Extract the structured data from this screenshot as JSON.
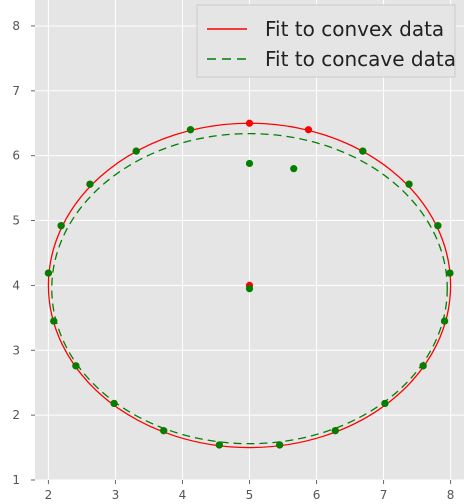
{
  "chart_data": {
    "type": "scatter",
    "xlim": [
      1.8,
      8.2
    ],
    "ylim": [
      1,
      8.4
    ],
    "xticks": [
      "2",
      "3",
      "4",
      "5",
      "6",
      "7",
      "8"
    ],
    "yticks": [
      "1",
      "2",
      "3",
      "4",
      "5",
      "6",
      "7",
      "8"
    ],
    "grid": true,
    "background": "#e5e5e5",
    "legend_location": "top-right",
    "legend": [
      {
        "label": "Fit to convex data",
        "color": "#ff0000",
        "style": "solid"
      },
      {
        "label": "Fit to concave data",
        "color": "#008000",
        "style": "dashed"
      }
    ],
    "fits": [
      {
        "name": "Fit to convex data",
        "color": "#ff0000",
        "style": "solid",
        "center": [
          5.0,
          4.0
        ],
        "radius_x": 3.0,
        "radius_y": 2.5
      },
      {
        "name": "Fit to concave data",
        "color": "#008000",
        "style": "dashed",
        "center": [
          5.0,
          3.95
        ],
        "radius_x": 2.95,
        "radius_y": 2.39
      }
    ],
    "points_convex": {
      "color": "#ff0000",
      "x": [
        5.0,
        5.0,
        5.88,
        6.69,
        7.38,
        7.81,
        7.99,
        7.91,
        7.59,
        7.02,
        6.28,
        5.45,
        4.55,
        3.72,
        2.98,
        2.41,
        2.08,
        2.0,
        2.19,
        2.62,
        3.31,
        4.12
      ],
      "y": [
        4.0,
        6.5,
        6.4,
        6.07,
        5.56,
        4.92,
        4.19,
        3.45,
        2.76,
        2.18,
        1.76,
        1.54,
        1.54,
        1.76,
        2.18,
        2.76,
        3.45,
        4.19,
        4.92,
        5.56,
        6.07,
        6.4
      ]
    },
    "points_concave": {
      "color": "#008000",
      "x": [
        5.0,
        5.0,
        5.66,
        6.69,
        7.38,
        7.81,
        7.99,
        7.91,
        7.59,
        7.02,
        6.28,
        5.45,
        4.55,
        3.72,
        2.98,
        2.41,
        2.08,
        2.0,
        2.19,
        2.62,
        3.31,
        4.12
      ],
      "y": [
        3.95,
        5.88,
        5.8,
        6.07,
        5.56,
        4.92,
        4.19,
        3.45,
        2.76,
        2.18,
        1.76,
        1.54,
        1.54,
        1.76,
        2.18,
        2.76,
        3.45,
        4.19,
        4.92,
        5.56,
        6.07,
        6.4
      ]
    }
  }
}
